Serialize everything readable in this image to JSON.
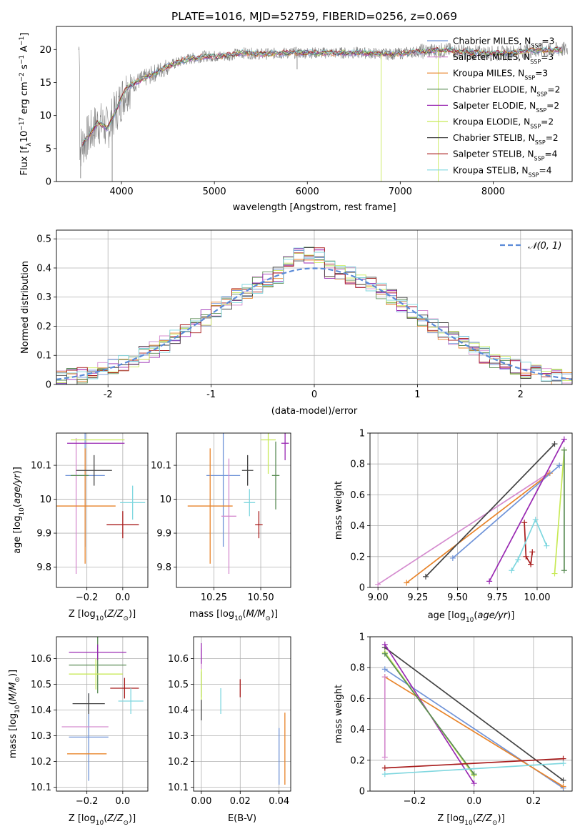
{
  "figure_title": "PLATE=1016, MJD=52759, FIBERID=0256, z=0.069",
  "colors": {
    "chabrier_miles": "#6f93d8",
    "salpeter_miles": "#d58ccf",
    "kroupa_miles": "#e8842a",
    "chabrier_elodie": "#5a8c55",
    "salpeter_elodie": "#9a2ab3",
    "kroupa_elodie": "#c8ea57",
    "chabrier_stelib": "#444444",
    "salpeter_stelib": "#a81c1c",
    "kroupa_stelib": "#7fd7df",
    "spectrum_data": "#808080",
    "normal_curve": "#5b8bd8"
  },
  "chart_data": [
    {
      "id": "spectrum",
      "type": "line",
      "xlabel": "wavelength [Angstrom, rest frame]",
      "ylabel": "Flux [f_λ10^-17 erg cm^-2 s^-1 A^-1]",
      "xlim": [
        3300,
        8850
      ],
      "ylim": [
        0,
        23.5
      ],
      "xticks": [
        4000,
        5000,
        6000,
        7000,
        8000
      ],
      "yticks": [
        0,
        5,
        10,
        15,
        20
      ],
      "legend_position": "right",
      "legend": [
        {
          "label": "Chabrier MILES, N_SSP=3",
          "color": "chabrier_miles"
        },
        {
          "label": "Salpeter MILES, N_SSP=3",
          "color": "salpeter_miles"
        },
        {
          "label": "Kroupa MILES, N_SSP=3",
          "color": "kroupa_miles"
        },
        {
          "label": "Chabrier ELODIE, N_SSP=2",
          "color": "chabrier_elodie"
        },
        {
          "label": "Salpeter ELODIE, N_SSP=2",
          "color": "salpeter_elodie"
        },
        {
          "label": "Kroupa ELODIE, N_SSP=2",
          "color": "kroupa_elodie"
        },
        {
          "label": "Chabrier STELIB, N_SSP=2",
          "color": "chabrier_stelib"
        },
        {
          "label": "Salpeter STELIB, N_SSP=4",
          "color": "salpeter_stelib"
        },
        {
          "label": "Kroupa STELIB, N_SSP=4",
          "color": "kroupa_stelib"
        }
      ],
      "model_continuum": {
        "x": [
          3550,
          3650,
          3750,
          3850,
          3950,
          4050,
          4150,
          4300,
          4500,
          4700,
          4900,
          5100,
          5300,
          5500,
          5800,
          6000,
          6300,
          6600,
          6900,
          7200,
          7500,
          7800,
          8100,
          8400,
          8800
        ],
        "y": [
          5,
          7,
          9,
          8,
          11,
          14,
          15,
          16,
          17.5,
          18.5,
          19,
          19,
          19.5,
          19.3,
          19.5,
          19.5,
          19.5,
          19.5,
          19.3,
          19.7,
          19.9,
          19.5,
          19.4,
          19.8,
          20
        ]
      },
      "spikes": [
        {
          "x": 3560,
          "y": 0.5
        },
        {
          "x": 3900,
          "y": 0
        },
        {
          "x": 5890,
          "y": 17
        },
        {
          "x": 6795,
          "y": 0
        },
        {
          "x": 7410,
          "y": 0
        }
      ]
    },
    {
      "id": "residuals",
      "type": "bar",
      "xlabel": "(data-model)/error",
      "ylabel": "Normed distribution",
      "xlim": [
        -2.5,
        2.5
      ],
      "ylim": [
        0,
        0.53
      ],
      "xticks": [
        -2,
        -1,
        0,
        1,
        2
      ],
      "yticks": [
        0.0,
        0.1,
        0.2,
        0.3,
        0.4,
        0.5
      ],
      "grid": true,
      "legend": [
        {
          "label": "𝒩(0, 1)",
          "color": "normal_curve",
          "style": "dashed"
        }
      ],
      "legend_position": "upper right",
      "curve": "standard normal pdf",
      "bin_width": 0.1,
      "histogram_approx": {
        "x": [
          -2.45,
          -2.25,
          -2.05,
          -1.85,
          -1.65,
          -1.45,
          -1.25,
          -1.05,
          -0.85,
          -0.65,
          -0.45,
          -0.25,
          -0.05,
          0.15,
          0.35,
          0.55,
          0.75,
          0.95,
          1.15,
          1.35,
          1.55,
          1.75,
          1.95,
          2.15,
          2.35
        ],
        "y": [
          0.02,
          0.035,
          0.05,
          0.075,
          0.11,
          0.14,
          0.18,
          0.23,
          0.28,
          0.33,
          0.37,
          0.42,
          0.46,
          0.43,
          0.4,
          0.36,
          0.3,
          0.25,
          0.19,
          0.14,
          0.11,
          0.08,
          0.05,
          0.035,
          0.02
        ]
      }
    },
    {
      "id": "age_vs_Z",
      "type": "scatter",
      "xlabel": "Z [log10(Z/Z☉)]",
      "ylabel": "age  [log10(age/yr)]",
      "xlim": [
        -0.37,
        0.14
      ],
      "ylim": [
        9.74,
        10.195
      ],
      "xticks": [
        -0.2,
        0.0
      ],
      "xtick_labels": [
        "−0.2",
        "0.0"
      ],
      "yticks": [
        9.8,
        9.9,
        10.0,
        10.1
      ],
      "points": [
        {
          "color": "chabrier_miles",
          "x": -0.21,
          "xerr": 0.11,
          "y": 10.07,
          "yerr": 0.21
        },
        {
          "color": "salpeter_miles",
          "x": -0.26,
          "xerr": 0.0,
          "y": 9.98,
          "yerr": 0.2
        },
        {
          "color": "kroupa_miles",
          "x": -0.21,
          "xerr": 0.17,
          "y": 9.98,
          "yerr": 0.17
        },
        {
          "color": "chabrier_elodie",
          "x": -0.24,
          "xerr": 0.05,
          "y": 10.07,
          "yerr": 0.0
        },
        {
          "color": "salpeter_elodie",
          "x": -0.15,
          "xerr": 0.16,
          "y": 10.165,
          "yerr": 0.0
        },
        {
          "color": "kroupa_elodie",
          "x": -0.14,
          "xerr": 0.15,
          "y": 10.175,
          "yerr": 0.0
        },
        {
          "color": "chabrier_stelib",
          "x": -0.16,
          "xerr": 0.1,
          "y": 10.085,
          "yerr": 0.045
        },
        {
          "color": "salpeter_stelib",
          "x": 0.0,
          "xerr": 0.09,
          "y": 9.925,
          "yerr": 0.04
        },
        {
          "color": "kroupa_stelib",
          "x": 0.055,
          "xerr": 0.07,
          "y": 9.99,
          "yerr": 0.05
        }
      ]
    },
    {
      "id": "age_vs_mass",
      "type": "scatter",
      "xlabel": "mass [log10(M/M☉)]",
      "ylabel": "",
      "xlim": [
        10.05,
        10.66
      ],
      "ylim": [
        9.74,
        10.195
      ],
      "xticks": [
        10.25,
        10.5
      ],
      "xtick_labels": [
        "10.25",
        "10.50"
      ],
      "yticks": [
        9.8,
        9.9,
        10.0,
        10.1
      ],
      "points": [
        {
          "color": "chabrier_miles",
          "x": 10.3,
          "xerr": 0.09,
          "y": 10.07,
          "yerr": 0.21
        },
        {
          "color": "salpeter_miles",
          "x": 10.33,
          "xerr": 0.04,
          "y": 9.95,
          "yerr": 0.17
        },
        {
          "color": "kroupa_miles",
          "x": 10.23,
          "xerr": 0.12,
          "y": 9.98,
          "yerr": 0.17
        },
        {
          "color": "chabrier_elodie",
          "x": 10.58,
          "xerr": 0.02,
          "y": 10.07,
          "yerr": 0.1
        },
        {
          "color": "salpeter_elodie",
          "x": 10.63,
          "xerr": 0.02,
          "y": 10.165,
          "yerr": 0.05
        },
        {
          "color": "kroupa_elodie",
          "x": 10.54,
          "xerr": 0.04,
          "y": 10.175,
          "yerr": 0.1
        },
        {
          "color": "chabrier_stelib",
          "x": 10.43,
          "xerr": 0.03,
          "y": 10.085,
          "yerr": 0.045
        },
        {
          "color": "salpeter_stelib",
          "x": 10.49,
          "xerr": 0.02,
          "y": 9.925,
          "yerr": 0.04
        },
        {
          "color": "kroupa_stelib",
          "x": 10.44,
          "xerr": 0.03,
          "y": 9.99,
          "yerr": 0.04
        }
      ]
    },
    {
      "id": "massweight_vs_age",
      "type": "line",
      "xlabel": "age  [log10(age/yr)]",
      "ylabel": "mass weight",
      "xlim": [
        8.95,
        10.22
      ],
      "ylim": [
        0,
        1.0
      ],
      "xticks": [
        9.0,
        9.25,
        9.5,
        9.75,
        10.0
      ],
      "xtick_labels": [
        "9.00",
        "9.25",
        "9.50",
        "9.75",
        "10.00"
      ],
      "yticks": [
        0.0,
        0.2,
        0.4,
        0.6,
        0.8,
        1.0
      ],
      "grid": true,
      "series": [
        {
          "color": "salpeter_miles",
          "x": [
            9.0,
            10.07
          ],
          "y": [
            0.02,
            0.74
          ]
        },
        {
          "color": "kroupa_miles",
          "x": [
            9.18,
            10.08
          ],
          "y": [
            0.03,
            0.74
          ]
        },
        {
          "color": "chabrier_miles",
          "x": [
            9.47,
            10.14
          ],
          "y": [
            0.19,
            0.79
          ]
        },
        {
          "color": "chabrier_stelib",
          "x": [
            9.3,
            10.11
          ],
          "y": [
            0.07,
            0.93
          ]
        },
        {
          "color": "salpeter_elodie",
          "x": [
            9.7,
            10.17
          ],
          "y": [
            0.04,
            0.96
          ]
        },
        {
          "color": "kroupa_elodie",
          "x": [
            10.11,
            10.17
          ],
          "y": [
            0.09,
            0.89
          ]
        },
        {
          "color": "chabrier_elodie",
          "x": [
            10.17,
            10.17
          ],
          "y": [
            0.89,
            0.11
          ]
        },
        {
          "color": "salpeter_stelib",
          "x": [
            9.92,
            9.93,
            9.96,
            9.97
          ],
          "y": [
            0.42,
            0.2,
            0.15,
            0.23
          ]
        },
        {
          "color": "kroupa_stelib",
          "x": [
            9.84,
            9.88,
            9.99,
            10.06
          ],
          "y": [
            0.11,
            0.18,
            0.44,
            0.27
          ]
        }
      ]
    },
    {
      "id": "mass_vs_Z",
      "type": "scatter",
      "xlabel": "Z [log10(Z/Z☉)]",
      "ylabel": "mass [log10(M/M☉)]",
      "xlim": [
        -0.37,
        0.14
      ],
      "ylim": [
        10.085,
        10.685
      ],
      "xticks": [
        -0.2,
        0.0
      ],
      "xtick_labels": [
        "−0.2",
        "0.0"
      ],
      "yticks": [
        10.1,
        10.2,
        10.3,
        10.4,
        10.5,
        10.6
      ],
      "points": [
        {
          "color": "chabrier_miles",
          "x": -0.19,
          "xerr": 0.11,
          "y": 10.295,
          "yerr": 0.17
        },
        {
          "color": "salpeter_miles",
          "x": -0.21,
          "xerr": 0.13,
          "y": 10.335,
          "yerr": 0.0
        },
        {
          "color": "kroupa_miles",
          "x": -0.2,
          "xerr": 0.11,
          "y": 10.23,
          "yerr": 0.0
        },
        {
          "color": "chabrier_elodie",
          "x": -0.14,
          "xerr": 0.16,
          "y": 10.575,
          "yerr": 0.11
        },
        {
          "color": "salpeter_elodie",
          "x": -0.14,
          "xerr": 0.16,
          "y": 10.625,
          "yerr": 0.03
        },
        {
          "color": "kroupa_elodie",
          "x": -0.15,
          "xerr": 0.15,
          "y": 10.54,
          "yerr": 0.06
        },
        {
          "color": "chabrier_stelib",
          "x": -0.19,
          "xerr": 0.09,
          "y": 10.425,
          "yerr": 0.04
        },
        {
          "color": "salpeter_stelib",
          "x": 0.01,
          "xerr": 0.08,
          "y": 10.485,
          "yerr": 0.04
        },
        {
          "color": "kroupa_stelib",
          "x": 0.045,
          "xerr": 0.07,
          "y": 10.435,
          "yerr": 0.05
        }
      ]
    },
    {
      "id": "mass_vs_ebv",
      "type": "scatter",
      "xlabel": "E(B-V)",
      "ylabel": "",
      "xlim": [
        -0.004,
        0.046
      ],
      "ylim": [
        10.085,
        10.685
      ],
      "xticks": [
        0.0,
        0.02,
        0.04
      ],
      "xtick_labels": [
        "0.00",
        "0.02",
        "0.04"
      ],
      "yticks": [
        10.1,
        10.2,
        10.3,
        10.4,
        10.5,
        10.6
      ],
      "points": [
        {
          "color": "chabrier_miles",
          "x": 0.04,
          "y": 10.22,
          "yerr": 0.11
        },
        {
          "color": "salpeter_miles",
          "x": 0.0,
          "y": 10.6,
          "yerr": 0.04
        },
        {
          "color": "kroupa_miles",
          "x": 0.043,
          "y": 10.25,
          "yerr": 0.14
        },
        {
          "color": "chabrier_elodie",
          "x": 0.0,
          "y": 10.5,
          "yerr": 0.05
        },
        {
          "color": "salpeter_elodie",
          "x": 0.0,
          "y": 10.62,
          "yerr": 0.04
        },
        {
          "color": "kroupa_elodie",
          "x": 0.0,
          "y": 10.5,
          "yerr": 0.06
        },
        {
          "color": "chabrier_stelib",
          "x": 0.0,
          "y": 10.4,
          "yerr": 0.04
        },
        {
          "color": "salpeter_stelib",
          "x": 0.02,
          "y": 10.485,
          "yerr": 0.035
        },
        {
          "color": "kroupa_stelib",
          "x": 0.01,
          "y": 10.435,
          "yerr": 0.05
        }
      ]
    },
    {
      "id": "massweight_vs_Z",
      "type": "line",
      "xlabel": "Z [log10(Z/Z☉)]",
      "ylabel": "mass weight",
      "xlim": [
        -0.35,
        0.33
      ],
      "ylim": [
        0,
        1.0
      ],
      "xticks": [
        -0.2,
        0.0,
        0.2
      ],
      "xtick_labels": [
        "−0.2",
        "0.0",
        "0.2"
      ],
      "yticks": [
        0.0,
        0.2,
        0.4,
        0.6,
        0.8,
        1.0
      ],
      "grid": true,
      "series": [
        {
          "color": "chabrier_miles",
          "x": [
            -0.3,
            0.3
          ],
          "y": [
            0.79,
            0.02
          ]
        },
        {
          "color": "kroupa_miles",
          "x": [
            -0.3,
            0.3
          ],
          "y": [
            0.74,
            0.03
          ]
        },
        {
          "color": "salpeter_miles",
          "x": [
            -0.3,
            -0.3
          ],
          "y": [
            0.22,
            0.74
          ]
        },
        {
          "color": "chabrier_stelib",
          "x": [
            -0.3,
            0.3
          ],
          "y": [
            0.93,
            0.07
          ]
        },
        {
          "color": "salpeter_elodie",
          "x": [
            -0.3,
            0.0
          ],
          "y": [
            0.95,
            0.05
          ]
        },
        {
          "color": "kroupa_elodie",
          "x": [
            -0.3,
            0.0
          ],
          "y": [
            0.9,
            0.1
          ]
        },
        {
          "color": "chabrier_elodie",
          "x": [
            -0.3,
            0.0
          ],
          "y": [
            0.89,
            0.11
          ]
        },
        {
          "color": "salpeter_stelib",
          "x": [
            -0.3,
            0.3
          ],
          "y": [
            0.15,
            0.21
          ]
        },
        {
          "color": "kroupa_stelib",
          "x": [
            -0.3,
            0.3
          ],
          "y": [
            0.11,
            0.18
          ]
        }
      ]
    }
  ]
}
